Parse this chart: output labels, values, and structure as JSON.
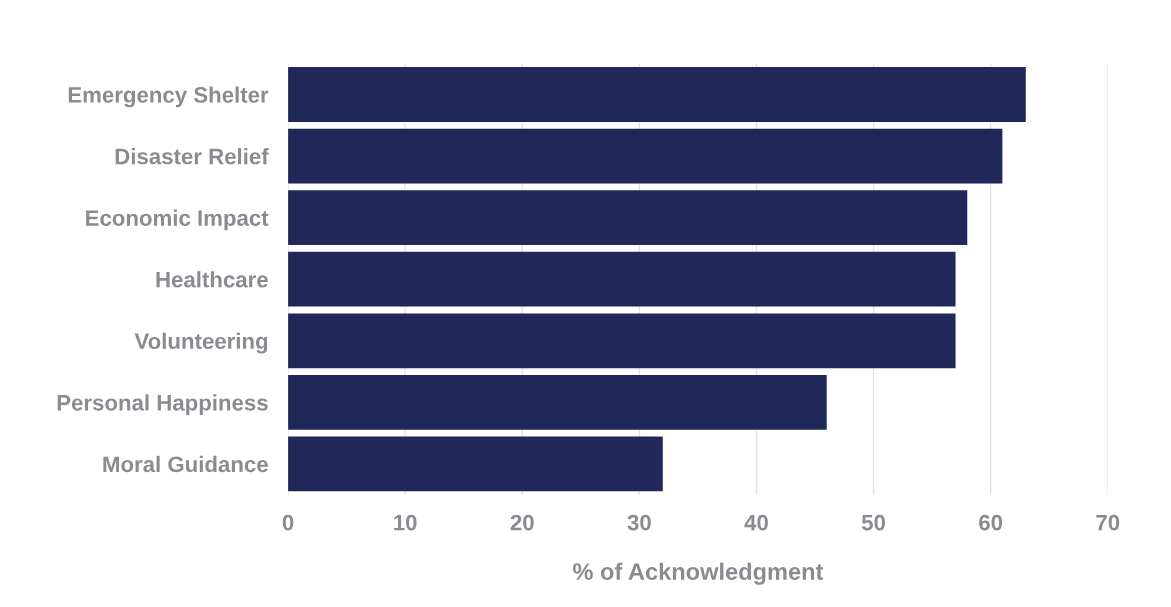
{
  "chart_data": {
    "type": "bar",
    "orientation": "horizontal",
    "xlabel": "% of Acknowledgment",
    "categories": [
      "Emergency Shelter",
      "Disaster Relief",
      "Economic Impact",
      "Healthcare",
      "Volunteering",
      "Personal Happiness",
      "Moral Guidance"
    ],
    "values": [
      63,
      61,
      58,
      57,
      57,
      46,
      32
    ],
    "color": "#1f2858",
    "xlim": [
      0,
      70
    ],
    "xticks": [
      0,
      10,
      20,
      30,
      40,
      50,
      60,
      70
    ],
    "grid": "x",
    "legend": false
  }
}
